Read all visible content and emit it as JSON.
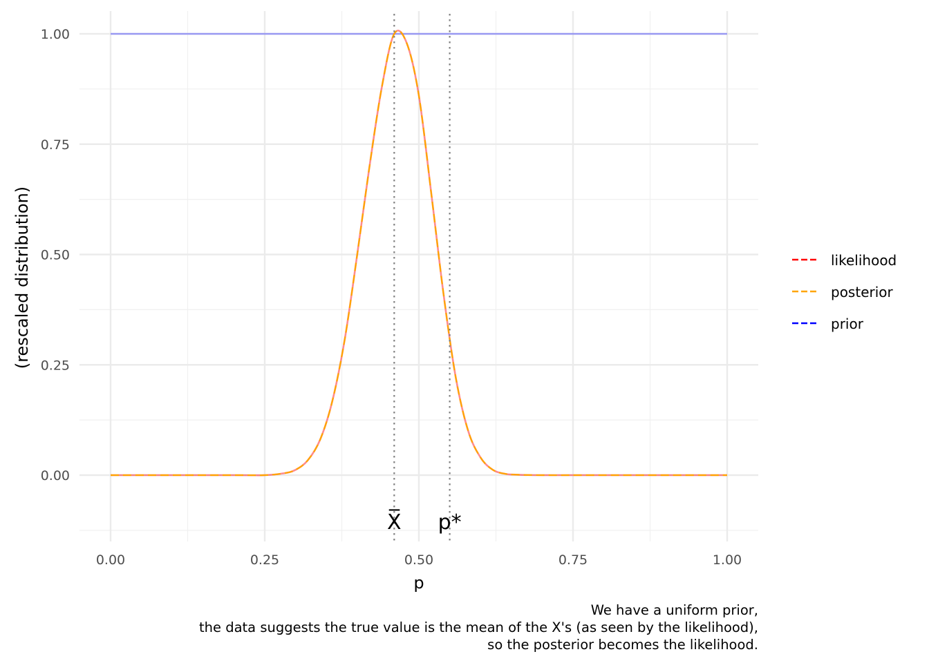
{
  "chart_data": {
    "type": "line",
    "xlabel": "p",
    "ylabel": "(rescaled distribution)",
    "xlim": [
      -0.05,
      1.05
    ],
    "ylim": [
      -0.13,
      1.04
    ],
    "x_ticks": [
      0.0,
      0.25,
      0.5,
      0.75,
      1.0
    ],
    "x_tick_labels": [
      "0.00",
      "0.25",
      "0.50",
      "0.75",
      "1.00"
    ],
    "y_ticks": [
      0.0,
      0.25,
      0.5,
      0.75,
      1.0
    ],
    "y_tick_labels": [
      "0.00",
      "0.25",
      "0.50",
      "0.75",
      "1.00"
    ],
    "grid": true,
    "legend_position": "right",
    "x": [
      0.0,
      0.2,
      0.25,
      0.28,
      0.3,
      0.32,
      0.34,
      0.36,
      0.38,
      0.4,
      0.42,
      0.44,
      0.46,
      0.48,
      0.5,
      0.52,
      0.54,
      0.56,
      0.58,
      0.6,
      0.62,
      0.64,
      0.66,
      0.7,
      0.8,
      1.0
    ],
    "series": [
      {
        "name": "likelihood",
        "color": "#ff0000",
        "values": [
          0.0,
          0.0,
          0.0,
          0.004,
          0.012,
          0.034,
          0.081,
          0.17,
          0.31,
          0.5,
          0.7,
          0.88,
          1.0,
          0.98,
          0.86,
          0.64,
          0.41,
          0.22,
          0.1,
          0.04,
          0.012,
          0.003,
          0.001,
          0.0,
          0.0,
          0.0
        ]
      },
      {
        "name": "posterior",
        "color": "#ffa500",
        "values": [
          0.0,
          0.0,
          0.0,
          0.004,
          0.012,
          0.034,
          0.081,
          0.17,
          0.31,
          0.5,
          0.7,
          0.88,
          1.0,
          0.98,
          0.86,
          0.64,
          0.41,
          0.22,
          0.1,
          0.04,
          0.012,
          0.003,
          0.001,
          0.0,
          0.0,
          0.0
        ]
      },
      {
        "name": "prior",
        "color": "#0000ff",
        "values": [
          1.0,
          1.0,
          1.0,
          1.0,
          1.0,
          1.0,
          1.0,
          1.0,
          1.0,
          1.0,
          1.0,
          1.0,
          1.0,
          1.0,
          1.0,
          1.0,
          1.0,
          1.0,
          1.0,
          1.0,
          1.0,
          1.0,
          1.0,
          1.0,
          1.0,
          1.0
        ]
      }
    ],
    "vlines": [
      {
        "x": 0.46,
        "label": "X̅",
        "style": "dotted",
        "color": "#808080"
      },
      {
        "x": 0.55,
        "label": "p*",
        "style": "dotted",
        "color": "#808080"
      }
    ],
    "caption": [
      "We have a uniform prior,",
      "the data suggests the true value is the mean of the X's (as seen by the likelihood),",
      "so the posterior becomes the likelihood."
    ]
  }
}
